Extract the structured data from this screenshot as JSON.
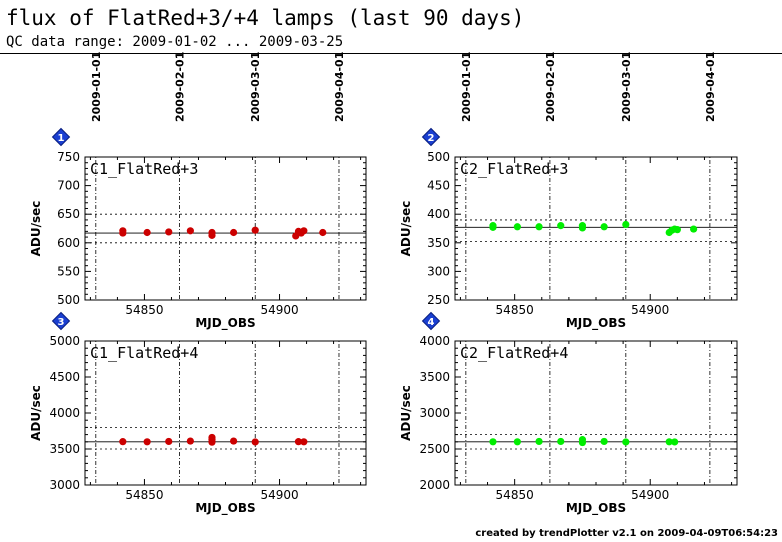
{
  "header": {
    "title": "flux of FlatRed+3/+4 lamps (last 90 days)",
    "subtitle": "QC data range: 2009-01-02 ... 2009-03-25"
  },
  "footer": "created by trendPlotter v2.1 on 2009-04-09T06:54:23",
  "date_axis": {
    "labels": [
      "2009-01-01",
      "2009-02-01",
      "2009-03-01",
      "2009-04-01"
    ],
    "mjd": [
      54832,
      54863,
      54891,
      54922
    ]
  },
  "colors": {
    "red": "#cc0000",
    "green": "#00ee00",
    "grid": "#000000"
  },
  "chart_data": [
    {
      "type": "scatter",
      "badge": "1",
      "title": "C1_FlatRed+3",
      "xlabel": "MJD_OBS",
      "ylabel": "ADU/sec",
      "xlim": [
        54828,
        54932
      ],
      "ylim": [
        500,
        750
      ],
      "xticks": [
        54850,
        54900
      ],
      "yticks": [
        500,
        550,
        600,
        650,
        700,
        750
      ],
      "reference": 617,
      "limits": [
        600,
        650
      ],
      "color": "#cc0000",
      "x": [
        54842,
        54842,
        54851,
        54859,
        54867,
        54875,
        54875,
        54883,
        54891,
        54906,
        54907,
        54908,
        54909,
        54916
      ],
      "y": [
        617,
        621,
        618,
        619,
        621,
        613,
        618,
        618,
        622,
        612,
        620,
        617,
        621,
        618
      ]
    },
    {
      "type": "scatter",
      "badge": "2",
      "title": "C2_FlatRed+3",
      "xlabel": "MJD_OBS",
      "ylabel": "ADU/sec",
      "xlim": [
        54828,
        54932
      ],
      "ylim": [
        250,
        500
      ],
      "xticks": [
        54850,
        54900
      ],
      "yticks": [
        250,
        300,
        350,
        400,
        450,
        500
      ],
      "reference": 377,
      "limits": [
        352,
        390
      ],
      "color": "#00ee00",
      "x": [
        54842,
        54842,
        54851,
        54859,
        54867,
        54875,
        54875,
        54883,
        54891,
        54907,
        54908,
        54909,
        54910,
        54916
      ],
      "y": [
        377,
        380,
        378,
        378,
        380,
        376,
        380,
        378,
        382,
        368,
        372,
        374,
        373,
        374
      ]
    },
    {
      "type": "scatter",
      "badge": "3",
      "title": "C1_FlatRed+4",
      "xlabel": "MJD_OBS",
      "ylabel": "ADU/sec",
      "xlim": [
        54828,
        54932
      ],
      "ylim": [
        3000,
        5000
      ],
      "xticks": [
        54850,
        54900
      ],
      "yticks": [
        3000,
        3500,
        4000,
        4500,
        5000
      ],
      "reference": 3600,
      "limits": [
        3500,
        3800
      ],
      "color": "#cc0000",
      "x": [
        54842,
        54851,
        54859,
        54867,
        54875,
        54875,
        54875,
        54883,
        54891,
        54907,
        54909
      ],
      "y": [
        3602,
        3600,
        3605,
        3610,
        3595,
        3630,
        3660,
        3610,
        3598,
        3602,
        3600
      ]
    },
    {
      "type": "scatter",
      "badge": "4",
      "title": "C2_FlatRed+4",
      "xlabel": "MJD_OBS",
      "ylabel": "ADU/sec",
      "xlim": [
        54828,
        54932
      ],
      "ylim": [
        2000,
        4000
      ],
      "xticks": [
        54850,
        54900
      ],
      "yticks": [
        2000,
        2500,
        3000,
        3500,
        4000
      ],
      "reference": 2600,
      "limits": [
        2500,
        2700
      ],
      "color": "#00ee00",
      "x": [
        54842,
        54851,
        54859,
        54867,
        54875,
        54875,
        54883,
        54891,
        54907,
        54909
      ],
      "y": [
        2600,
        2600,
        2605,
        2605,
        2590,
        2630,
        2605,
        2598,
        2600,
        2598
      ]
    }
  ]
}
